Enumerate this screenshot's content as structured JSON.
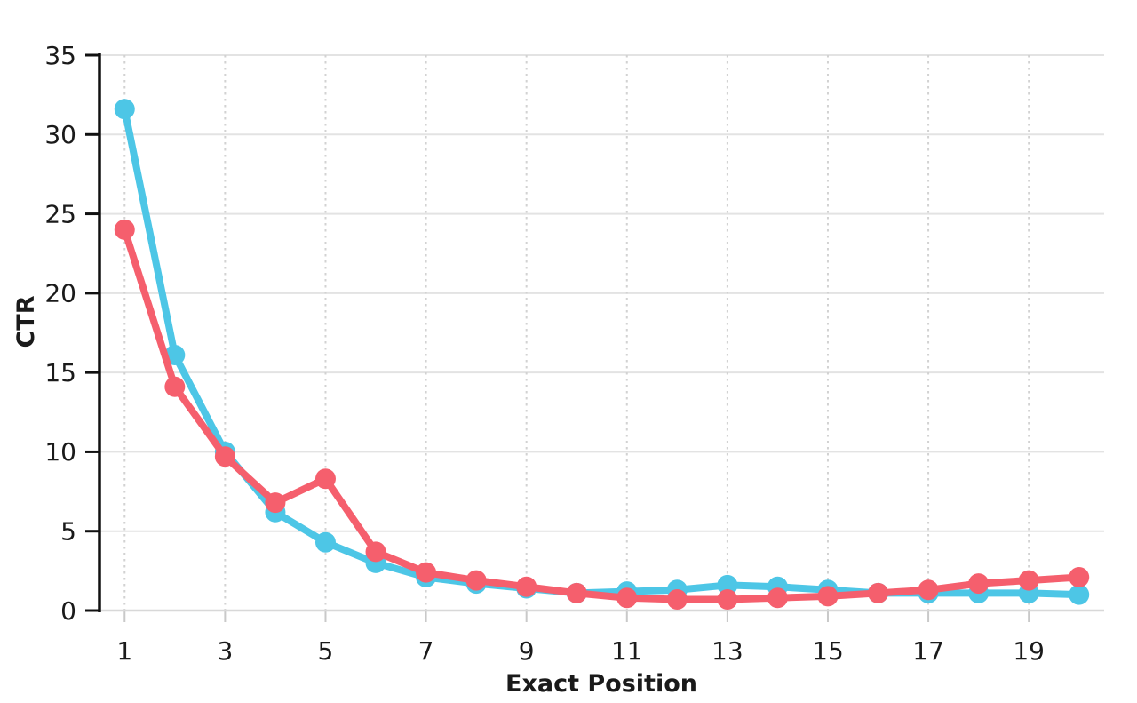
{
  "chart_data": {
    "type": "line",
    "title": "",
    "xlabel": "Exact Position",
    "ylabel": "CTR",
    "x": [
      1,
      2,
      3,
      4,
      5,
      6,
      7,
      8,
      9,
      10,
      11,
      12,
      13,
      14,
      15,
      16,
      17,
      18,
      19,
      20
    ],
    "xticks": [
      1,
      3,
      5,
      7,
      9,
      11,
      13,
      15,
      17,
      19
    ],
    "yticks": [
      0,
      5,
      10,
      15,
      20,
      25,
      30,
      35
    ],
    "ylim": [
      0,
      35
    ],
    "grid": {
      "horizontal": "solid",
      "vertical": "dotted",
      "h_color": "#e3e3e3",
      "v_color": "#d2d2d2"
    },
    "legend": "none",
    "axis_colors": {
      "y_axis": "#111111",
      "x_axis": "#d8d8d8",
      "text": "#1a1a1a"
    },
    "series": [
      {
        "name": "cyan-series",
        "color": "#4dc6e6",
        "values": [
          31.6,
          16.1,
          10.0,
          6.2,
          4.3,
          3.0,
          2.1,
          1.7,
          1.4,
          1.1,
          1.2,
          1.3,
          1.6,
          1.5,
          1.3,
          1.1,
          1.1,
          1.1,
          1.1,
          1.0
        ]
      },
      {
        "name": "red-series",
        "color": "#f55f6d",
        "values": [
          24.0,
          14.1,
          9.7,
          6.8,
          8.3,
          3.7,
          2.4,
          1.9,
          1.5,
          1.1,
          0.8,
          0.7,
          0.7,
          0.8,
          0.9,
          1.1,
          1.3,
          1.7,
          1.9,
          2.1
        ]
      }
    ]
  }
}
